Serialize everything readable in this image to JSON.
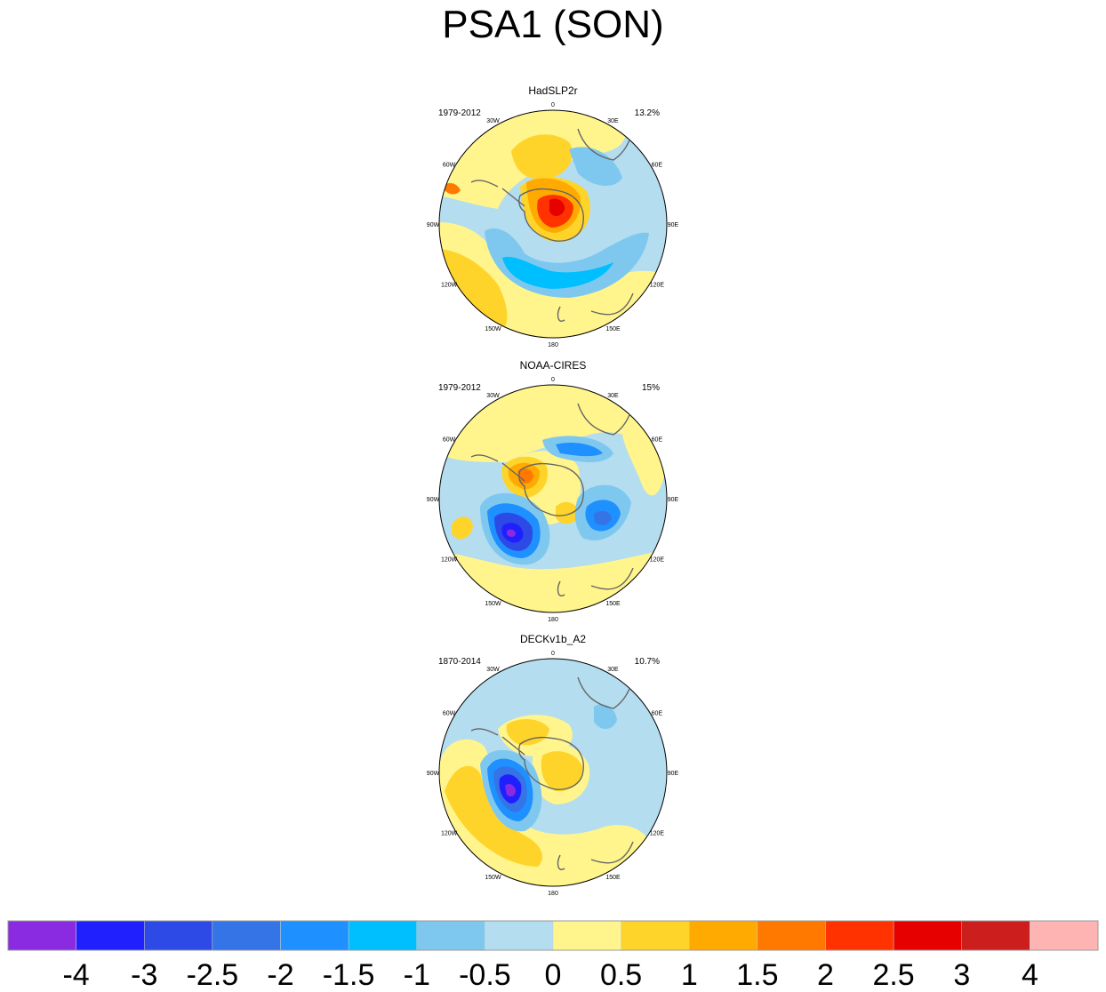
{
  "chart_data": {
    "type": "polar-contour-map",
    "title": "PSA1 (SON)",
    "projection": "south-polar-stereographic",
    "longitude_labels": [
      "0",
      "30E",
      "60E",
      "90E",
      "120E",
      "150E",
      "180",
      "150W",
      "120W",
      "90W",
      "60W",
      "30W"
    ],
    "panels": [
      {
        "name": "HadSLP2r",
        "period": "1979-2012",
        "explained_variance": "13.2%",
        "features": [
          {
            "sign": "positive",
            "level": 3,
            "where": "Antarctic interior (centred near 60E)"
          },
          {
            "sign": "positive",
            "level": 1.5,
            "where": "Weddell Sea / South Atlantic"
          },
          {
            "sign": "negative",
            "level": -1.5,
            "where": "Ross Sea / Pacific sector ring"
          },
          {
            "sign": "negative",
            "level": -0.5,
            "where": "Southern Ocean ring (0-90E)"
          },
          {
            "sign": "positive",
            "level": 1,
            "where": "South Pacific (near 120W-150W)"
          }
        ]
      },
      {
        "name": "NOAA-CIRES",
        "period": "1979-2012",
        "explained_variance": "15%",
        "features": [
          {
            "sign": "positive",
            "level": 2,
            "where": "Antarctic Peninsula / Bellingshausen"
          },
          {
            "sign": "negative",
            "level": -3.5,
            "where": "Amundsen Sea (near 120W)"
          },
          {
            "sign": "negative",
            "level": -1.5,
            "where": "South Indian Ocean (near 120E)"
          },
          {
            "sign": "negative",
            "level": -1,
            "where": "South Atlantic (near 30E-60E)"
          },
          {
            "sign": "positive",
            "level": 1,
            "where": "East Antarctica"
          }
        ]
      },
      {
        "name": "DECKv1b_A2",
        "period": "1870-2014",
        "explained_variance": "10.7%",
        "features": [
          {
            "sign": "negative",
            "level": -3.5,
            "where": "Amundsen Sea (near 120W)"
          },
          {
            "sign": "positive",
            "level": 1,
            "where": "South Pacific (near 150W)"
          },
          {
            "sign": "positive",
            "level": 1,
            "where": "Weddell Sea"
          },
          {
            "sign": "positive",
            "level": 0.5,
            "where": "East Antarctica"
          },
          {
            "sign": "negative",
            "level": -0.5,
            "where": "Southern Ocean ring"
          }
        ]
      }
    ],
    "colorbar": {
      "colors": [
        "#8a2be2",
        "#2020ff",
        "#2e4ae6",
        "#3574e6",
        "#1e90ff",
        "#00bfff",
        "#7ec8f0",
        "#b4ddef",
        "#fff58c",
        "#ffd42a",
        "#ffaa00",
        "#ff7800",
        "#ff3200",
        "#e60000",
        "#cd1e1e",
        "#ffb4b4"
      ],
      "tick_labels": [
        "-4",
        "-3",
        "-2.5",
        "-2",
        "-1.5",
        "-1",
        "-0.5",
        "0",
        "0.5",
        "1",
        "1.5",
        "2",
        "2.5",
        "3",
        "4"
      ]
    }
  }
}
